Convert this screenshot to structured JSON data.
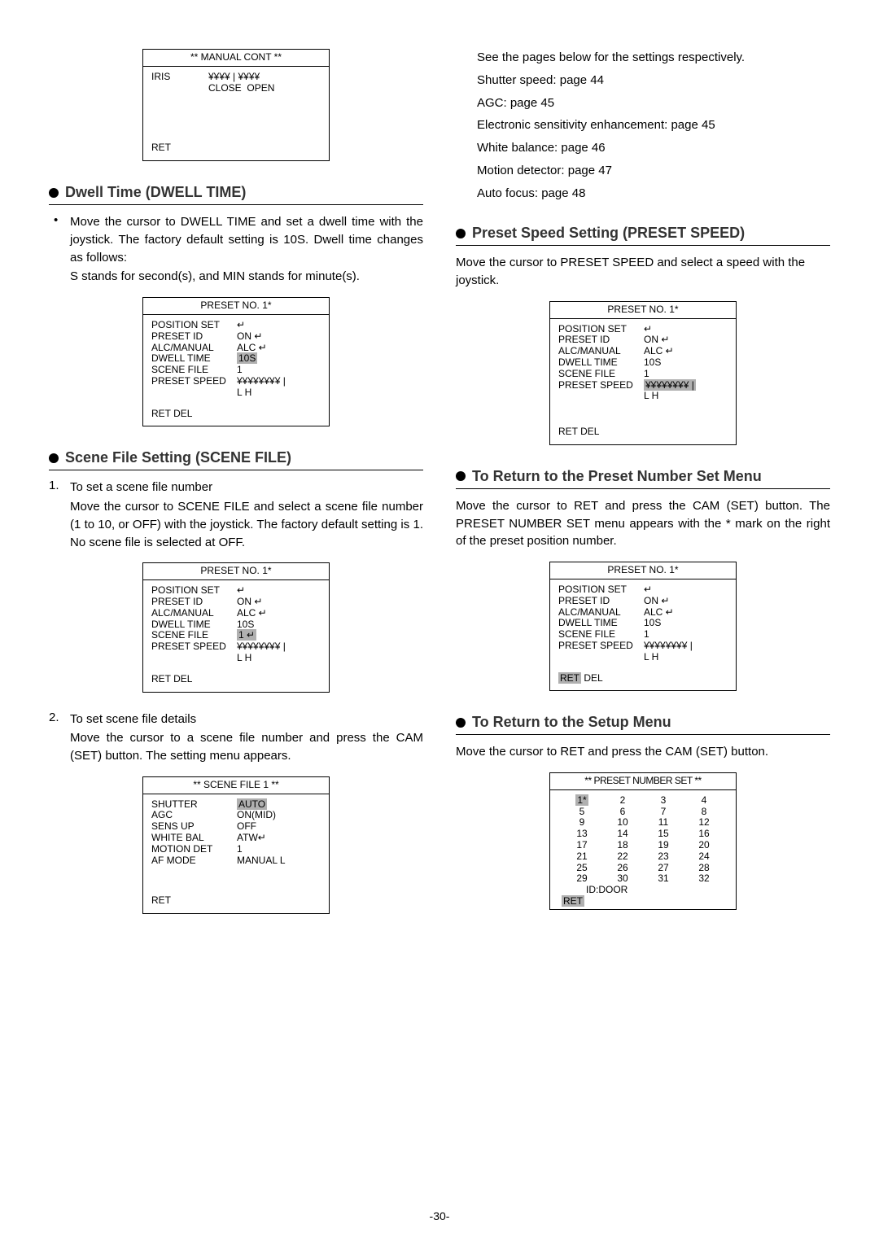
{
  "page_number": "-30-",
  "left": {
    "manual_cont": {
      "title": "** MANUAL CONT **",
      "iris_label": "IRIS",
      "iris_bar": "¥¥¥¥ | ¥¥¥¥",
      "close": "CLOSE",
      "open": "OPEN",
      "ret": "RET"
    },
    "dwell": {
      "heading": "Dwell Time (DWELL TIME)",
      "p1": "Move the cursor to DWELL TIME and set a dwell time with the joystick. The factory default setting is 10S. Dwell time changes as follows:",
      "p2": "S stands for second(s), and MIN stands for minute(s)."
    },
    "preset_screen": {
      "title": "PRESET NO. 1*",
      "rows": [
        {
          "l": "POSITION SET",
          "r": "↵"
        },
        {
          "l": "PRESET ID",
          "r": "ON   ↵"
        },
        {
          "l": "ALC/MANUAL",
          "r": "ALC  ↵"
        },
        {
          "l": "DWELL TIME",
          "r": "10S",
          "hl": true
        },
        {
          "l": "SCENE FILE",
          "r": "1"
        },
        {
          "l": "PRESET SPEED",
          "r": "¥¥¥¥¥¥¥¥ |"
        }
      ],
      "lh": "L       H",
      "footer": "RET   DEL"
    },
    "scene": {
      "heading": "Scene File Setting (SCENE FILE)",
      "item1_num": "1.",
      "item1_t": "To set a scene file number",
      "item1_p": "Move the cursor to SCENE FILE and select a scene file number (1 to 10, or OFF) with the joystick. The factory default setting is 1. No scene file is selected at OFF.",
      "item2_num": "2.",
      "item2_t": "To set scene file details",
      "item2_p": "Move the cursor to a scene file number and press the CAM (SET) button. The setting menu appears."
    },
    "preset_screen2": {
      "title": "PRESET NO. 1*",
      "rows": [
        {
          "l": "POSITION SET",
          "r": "↵"
        },
        {
          "l": "PRESET ID",
          "r": "ON   ↵"
        },
        {
          "l": "ALC/MANUAL",
          "r": "ALC  ↵"
        },
        {
          "l": "DWELL TIME",
          "r": "10S"
        },
        {
          "l": "SCENE FILE",
          "r": "1      ↵",
          "hl": true
        },
        {
          "l": "PRESET SPEED",
          "r": "¥¥¥¥¥¥¥¥ |"
        }
      ],
      "lh": "L       H",
      "footer": "RET   DEL"
    },
    "scenefile_screen": {
      "title": "** SCENE FILE 1 **",
      "rows": [
        {
          "l": "SHUTTER",
          "r": "AUTO",
          "hl": true
        },
        {
          "l": "AGC",
          "r": "ON(MID)"
        },
        {
          "l": "SENS UP",
          "r": "OFF"
        },
        {
          "l": "WHITE BAL",
          "r": "ATW↵"
        },
        {
          "l": "MOTION DET",
          "r": "1"
        },
        {
          "l": "AF MODE",
          "r": "MANUAL L"
        }
      ],
      "footer": "RET"
    }
  },
  "right": {
    "refs": {
      "intro": "See the pages below for the settings respectively.",
      "l1": "Shutter speed: page 44",
      "l2": "AGC: page 45",
      "l3": "Electronic sensitivity enhancement: page 45",
      "l4": "White balance: page 46",
      "l5": "Motion detector: page 47",
      "l6": "Auto focus: page 48"
    },
    "preset_speed": {
      "heading": "Preset Speed Setting (PRESET SPEED)",
      "p": "Move the cursor to PRESET SPEED and select a speed with the joystick."
    },
    "ps_screen": {
      "title": "PRESET NO. 1*",
      "rows": [
        {
          "l": "POSITION SET",
          "r": "↵"
        },
        {
          "l": "PRESET ID",
          "r": "ON   ↵"
        },
        {
          "l": "ALC/MANUAL",
          "r": "ALC  ↵"
        },
        {
          "l": "DWELL TIME",
          "r": "10S"
        },
        {
          "l": "SCENE FILE",
          "r": "1"
        },
        {
          "l": "PRESET SPEED",
          "r": "¥¥¥¥¥¥¥¥ |",
          "hl": true
        }
      ],
      "lh": "L       H",
      "footer": "RET   DEL"
    },
    "return_preset": {
      "heading": "To Return to the Preset Number Set Menu",
      "p": "Move the cursor to RET and press the CAM (SET) button. The PRESET NUMBER SET menu appears with the * mark on the right of the preset position number."
    },
    "rp_screen": {
      "title": "PRESET NO. 1*",
      "rows": [
        {
          "l": "POSITION SET",
          "r": "↵"
        },
        {
          "l": "PRESET ID",
          "r": "ON   ↵"
        },
        {
          "l": "ALC/MANUAL",
          "r": "ALC  ↵"
        },
        {
          "l": "DWELL TIME",
          "r": "10S"
        },
        {
          "l": "SCENE FILE",
          "r": "1"
        },
        {
          "l": "PRESET SPEED",
          "r": "¥¥¥¥¥¥¥¥ |"
        }
      ],
      "lh": "L       H",
      "footer_ret": "RET",
      "footer_del": "   DEL"
    },
    "return_setup": {
      "heading": "To Return to the Setup Menu",
      "p": "Move the cursor to RET and press the CAM (SET) button."
    },
    "numset_screen": {
      "title": "** PRESET NUMBER SET **",
      "grid": [
        [
          "1*",
          "2",
          "3",
          "4"
        ],
        [
          "5",
          "6",
          "7",
          "8"
        ],
        [
          "9",
          "10",
          "11",
          "12"
        ],
        [
          "13",
          "14",
          "15",
          "16"
        ],
        [
          "17",
          "18",
          "19",
          "20"
        ],
        [
          "21",
          "22",
          "23",
          "24"
        ],
        [
          "25",
          "26",
          "27",
          "28"
        ],
        [
          "29",
          "30",
          "31",
          "32"
        ]
      ],
      "id": "ID:DOOR",
      "ret": "RET"
    }
  }
}
